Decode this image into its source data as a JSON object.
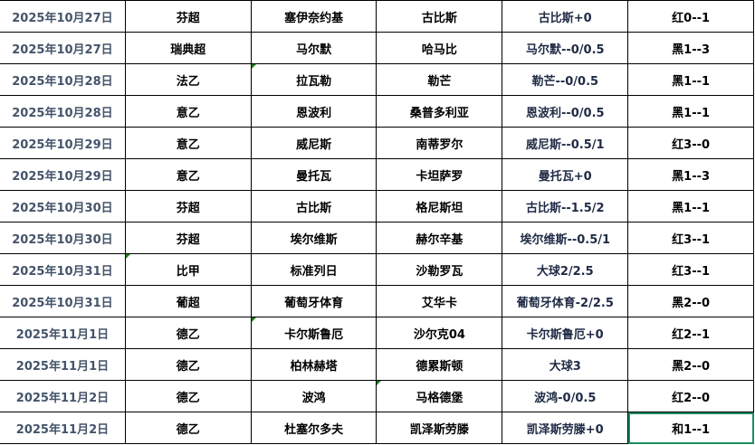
{
  "rows": [
    {
      "date": "2025年10月27日",
      "league": "芬超",
      "home": "塞伊奈约基",
      "away": "古比斯",
      "handicap": "古比斯+0",
      "result": "红0--1"
    },
    {
      "date": "2025年10月27日",
      "league": "瑞典超",
      "home": "马尔默",
      "away": "哈马比",
      "handicap": "马尔默--0/0.5",
      "result": "黑1--3"
    },
    {
      "date": "2025年10月28日",
      "league": "法乙",
      "home": "拉瓦勒",
      "away": "勒芒",
      "handicap": "勒芒--0/0.5",
      "result": "黑1--1"
    },
    {
      "date": "2025年10月28日",
      "league": "意乙",
      "home": "恩波利",
      "away": "桑普多利亚",
      "handicap": "恩波利--0/0.5",
      "result": "黑1--1"
    },
    {
      "date": "2025年10月29日",
      "league": "意乙",
      "home": "威尼斯",
      "away": "南蒂罗尔",
      "handicap": "威尼斯--0.5/1",
      "result": "红3--0"
    },
    {
      "date": "2025年10月29日",
      "league": "意乙",
      "home": "曼托瓦",
      "away": "卡坦萨罗",
      "handicap": "曼托瓦+0",
      "result": "黑1--3"
    },
    {
      "date": "2025年10月30日",
      "league": "芬超",
      "home": "古比斯",
      "away": "格尼斯坦",
      "handicap": "古比斯--1.5/2",
      "result": "黑1--1"
    },
    {
      "date": "2025年10月30日",
      "league": "芬超",
      "home": "埃尔维斯",
      "away": "赫尔辛基",
      "handicap": "埃尔维斯--0.5/1",
      "result": "红3--1"
    },
    {
      "date": "2025年10月31日",
      "league": "比甲",
      "home": "标准列日",
      "away": "沙勒罗瓦",
      "handicap": "大球2/2.5",
      "result": "红3--1"
    },
    {
      "date": "2025年10月31日",
      "league": "葡超",
      "home": "葡萄牙体育",
      "away": "艾华卡",
      "handicap": "葡萄牙体育-2/2.5",
      "result": "黑2--0"
    },
    {
      "date": "2025年11月1日",
      "league": "德乙",
      "home": "卡尔斯鲁厄",
      "away": "沙尔克04",
      "handicap": "卡尔斯鲁厄+0",
      "result": "红2--1"
    },
    {
      "date": "2025年11月1日",
      "league": "德乙",
      "home": "柏林赫塔",
      "away": "德累斯顿",
      "handicap": "大球3",
      "result": "黑2--0"
    },
    {
      "date": "2025年11月2日",
      "league": "德乙",
      "home": "波鸿",
      "away": "马格德堡",
      "handicap": "波鸿-0/0.5",
      "result": "红2--0"
    },
    {
      "date": "2025年11月2日",
      "league": "德乙",
      "home": "杜塞尔多夫",
      "away": "凯泽斯劳滕",
      "handicap": "凯泽斯劳滕+0",
      "result": "和1--1"
    }
  ],
  "selected_cell": {
    "row": 13,
    "column": "result"
  },
  "comment_markers": [
    {
      "row": 2,
      "column": "home"
    },
    {
      "row": 8,
      "column": "league"
    },
    {
      "row": 10,
      "column": "home"
    },
    {
      "row": 12,
      "column": "away"
    }
  ],
  "colors": {
    "date_text": "#44546a",
    "selection_border": "#1e8c5e",
    "marker": "#1a7f1a"
  }
}
